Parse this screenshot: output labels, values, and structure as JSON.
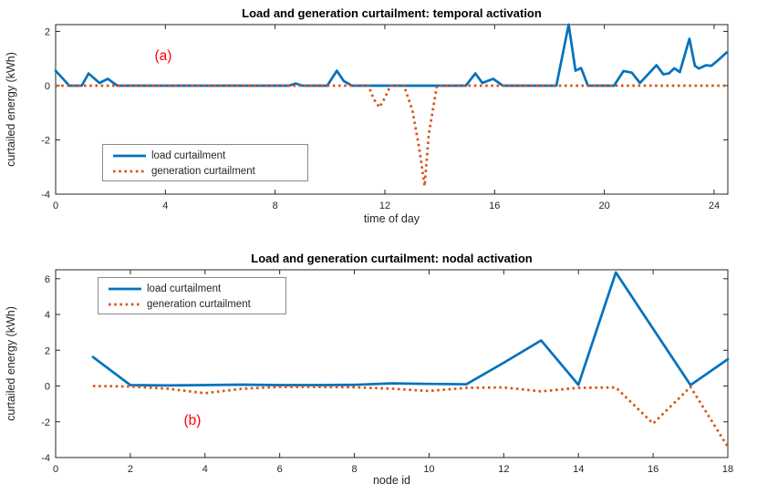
{
  "figure": {
    "background": "#ffffff"
  },
  "colors": {
    "load": "#0072BD",
    "generation": "#D95319",
    "annotation": "#ff0000",
    "axis": "#262626"
  },
  "chart_data": [
    {
      "type": "line",
      "title": "Load and generation curtailment: temporal activation",
      "annotation": "(a)",
      "xlabel": "time of day",
      "ylabel": "curtailed energy (kWh)",
      "xlim": [
        0,
        24.5
      ],
      "ylim": [
        -4,
        2.25
      ],
      "xticks": [
        0,
        4,
        8,
        12,
        16,
        20,
        24
      ],
      "yticks": [
        -4,
        -2,
        0,
        2
      ],
      "grid": false,
      "legend_position": "inside-lower-left",
      "series": [
        {
          "name": "load curtailment",
          "color": "#0072BD",
          "style": "solid",
          "points": [
            [
              0,
              0.55
            ],
            [
              0.5,
              0
            ],
            [
              0.95,
              0
            ],
            [
              1.2,
              0.45
            ],
            [
              1.6,
              0.1
            ],
            [
              1.9,
              0.25
            ],
            [
              2.25,
              0
            ],
            [
              8.5,
              0
            ],
            [
              8.75,
              0.08
            ],
            [
              9.0,
              0
            ],
            [
              9.9,
              0
            ],
            [
              10.25,
              0.55
            ],
            [
              10.5,
              0.17
            ],
            [
              10.8,
              0
            ],
            [
              14.95,
              0
            ],
            [
              15.3,
              0.45
            ],
            [
              15.55,
              0.1
            ],
            [
              15.95,
              0.25
            ],
            [
              16.3,
              0
            ],
            [
              18.25,
              0
            ],
            [
              18.7,
              2.25
            ],
            [
              18.95,
              0.55
            ],
            [
              19.15,
              0.65
            ],
            [
              19.4,
              0
            ],
            [
              20.35,
              0
            ],
            [
              20.7,
              0.54
            ],
            [
              21.0,
              0.48
            ],
            [
              21.3,
              0.1
            ],
            [
              21.9,
              0.75
            ],
            [
              22.15,
              0.42
            ],
            [
              22.35,
              0.45
            ],
            [
              22.55,
              0.64
            ],
            [
              22.75,
              0.5
            ],
            [
              23.1,
              1.73
            ],
            [
              23.3,
              0.73
            ],
            [
              23.45,
              0.63
            ],
            [
              23.7,
              0.75
            ],
            [
              23.9,
              0.73
            ],
            [
              24.1,
              0.9
            ],
            [
              24.45,
              1.22
            ]
          ]
        },
        {
          "name": "generation curtailment",
          "color": "#D95319",
          "style": "dotted",
          "points": [
            [
              0,
              0
            ],
            [
              11.4,
              0
            ],
            [
              11.6,
              -0.5
            ],
            [
              11.8,
              -0.8
            ],
            [
              12.0,
              -0.45
            ],
            [
              12.2,
              0
            ],
            [
              12.7,
              0
            ],
            [
              13.0,
              -0.9
            ],
            [
              13.25,
              -2.3
            ],
            [
              13.45,
              -3.7
            ],
            [
              13.6,
              -1.8
            ],
            [
              13.9,
              0
            ],
            [
              24.45,
              0
            ]
          ]
        }
      ]
    },
    {
      "type": "line",
      "title": "Load and generation curtailment: nodal activation",
      "annotation": "(b)",
      "xlabel": "node id",
      "ylabel": "curtailed energy (kWh)",
      "xlim": [
        0,
        18
      ],
      "ylim": [
        -4,
        6.5
      ],
      "xticks": [
        0,
        2,
        4,
        6,
        8,
        10,
        12,
        14,
        16,
        18
      ],
      "yticks": [
        -4,
        -2,
        0,
        2,
        4,
        6
      ],
      "grid": false,
      "legend_position": "inside-upper-left",
      "series": [
        {
          "name": "load curtailment",
          "color": "#0072BD",
          "style": "solid",
          "points": [
            [
              1,
              1.62
            ],
            [
              2,
              0.05
            ],
            [
              3,
              0.03
            ],
            [
              4,
              0.05
            ],
            [
              5,
              0.08
            ],
            [
              6,
              0.05
            ],
            [
              7,
              0.05
            ],
            [
              8,
              0.07
            ],
            [
              9,
              0.15
            ],
            [
              10,
              0.12
            ],
            [
              11,
              0.1
            ],
            [
              12,
              1.3
            ],
            [
              13,
              2.55
            ],
            [
              14,
              0.07
            ],
            [
              15,
              6.35
            ],
            [
              16,
              3.2
            ],
            [
              17,
              0.05
            ],
            [
              18,
              1.5
            ]
          ]
        },
        {
          "name": "generation curtailment",
          "color": "#D95319",
          "style": "dotted",
          "points": [
            [
              1,
              0
            ],
            [
              2,
              -0.03
            ],
            [
              3,
              -0.15
            ],
            [
              4,
              -0.4
            ],
            [
              5,
              -0.15
            ],
            [
              6,
              -0.05
            ],
            [
              7,
              -0.05
            ],
            [
              8,
              -0.07
            ],
            [
              9,
              -0.15
            ],
            [
              10,
              -0.28
            ],
            [
              11,
              -0.1
            ],
            [
              12,
              -0.08
            ],
            [
              13,
              -0.3
            ],
            [
              14,
              -0.1
            ],
            [
              15,
              -0.08
            ],
            [
              16,
              -2.1
            ],
            [
              17,
              -0.05
            ],
            [
              18,
              -3.4
            ]
          ]
        }
      ]
    }
  ]
}
